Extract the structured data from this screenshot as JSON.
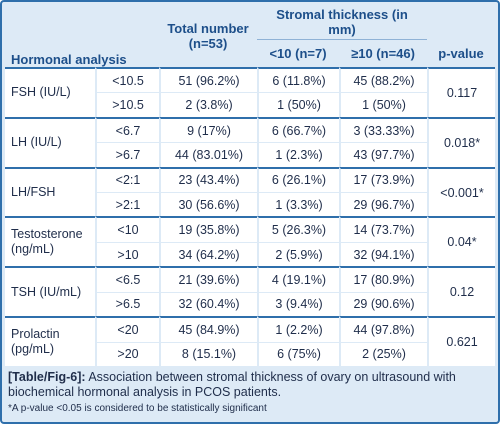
{
  "table": {
    "header": {
      "hormonal_analysis": "Hormonal analysis",
      "total_number": "Total number",
      "total_n": "(n=53)",
      "stromal_thickness": "Stromal thickness (in mm)",
      "lt10": "<10 (n=7)",
      "ge10": "≥10 (n=46)",
      "p_value": "p-value"
    },
    "groups": [
      {
        "name": "FSH (IU/L)",
        "p": "0.117",
        "rows": [
          {
            "cut": "<10.5",
            "total": "51 (96.2%)",
            "lt10": "6 (11.8%)",
            "ge10": "45 (88.2%)"
          },
          {
            "cut": ">10.5",
            "total": "2 (3.8%)",
            "lt10": "1 (50%)",
            "ge10": "1 (50%)"
          }
        ]
      },
      {
        "name": "LH (IU/L)",
        "p": "0.018*",
        "rows": [
          {
            "cut": "<6.7",
            "total": "9 (17%)",
            "lt10": "6 (66.7%)",
            "ge10": "3 (33.33%)"
          },
          {
            "cut": ">6.7",
            "total": "44 (83.01%)",
            "lt10": "1 (2.3%)",
            "ge10": "43 (97.7%)"
          }
        ]
      },
      {
        "name": "LH/FSH",
        "p": "<0.001*",
        "rows": [
          {
            "cut": "<2:1",
            "total": "23 (43.4%)",
            "lt10": "6 (26.1%)",
            "ge10": "17 (73.9%)"
          },
          {
            "cut": ">2:1",
            "total": "30 (56.6%)",
            "lt10": "1 (3.3%)",
            "ge10": "29 (96.7%)"
          }
        ]
      },
      {
        "name": "Testosterone (ng/mL)",
        "p": "0.04*",
        "rows": [
          {
            "cut": "<10",
            "total": "19 (35.8%)",
            "lt10": "5 (26.3%)",
            "ge10": "14 (73.7%)"
          },
          {
            "cut": ">10",
            "total": "34 (64.2%)",
            "lt10": "2 (5.9%)",
            "ge10": "32 (94.1%)"
          }
        ]
      },
      {
        "name": "TSH (IU/mL)",
        "p": "0.12",
        "rows": [
          {
            "cut": "<6.5",
            "total": "21 (39.6%)",
            "lt10": "4 (19.1%)",
            "ge10": "17 (80.9%)"
          },
          {
            "cut": ">6.5",
            "total": "32 (60.4%)",
            "lt10": "3 (9.4%)",
            "ge10": "29 (90.6%)"
          }
        ]
      },
      {
        "name": "Prolactin (pg/mL)",
        "p": "0.621",
        "rows": [
          {
            "cut": "<20",
            "total": "45 (84.9%)",
            "lt10": "1 (2.2%)",
            "ge10": "44 (97.8%)"
          },
          {
            "cut": ">20",
            "total": "8 (15.1%)",
            "lt10": "6 (75%)",
            "ge10": "2 (25%)"
          }
        ]
      }
    ]
  },
  "caption": {
    "label": "[Table/Fig-6]:",
    "text": " Association between stromal thickness of ovary on ultrasound with biochemical hormonal analysis in PCOS patients.",
    "footnote": "*A p-value <0.05 is considered to be statistically significant"
  },
  "colors": {
    "frame": "#2f6fab",
    "background": "#ddeaf6",
    "header_text": "#1d4f8a",
    "body_text": "#1f2d4a"
  }
}
